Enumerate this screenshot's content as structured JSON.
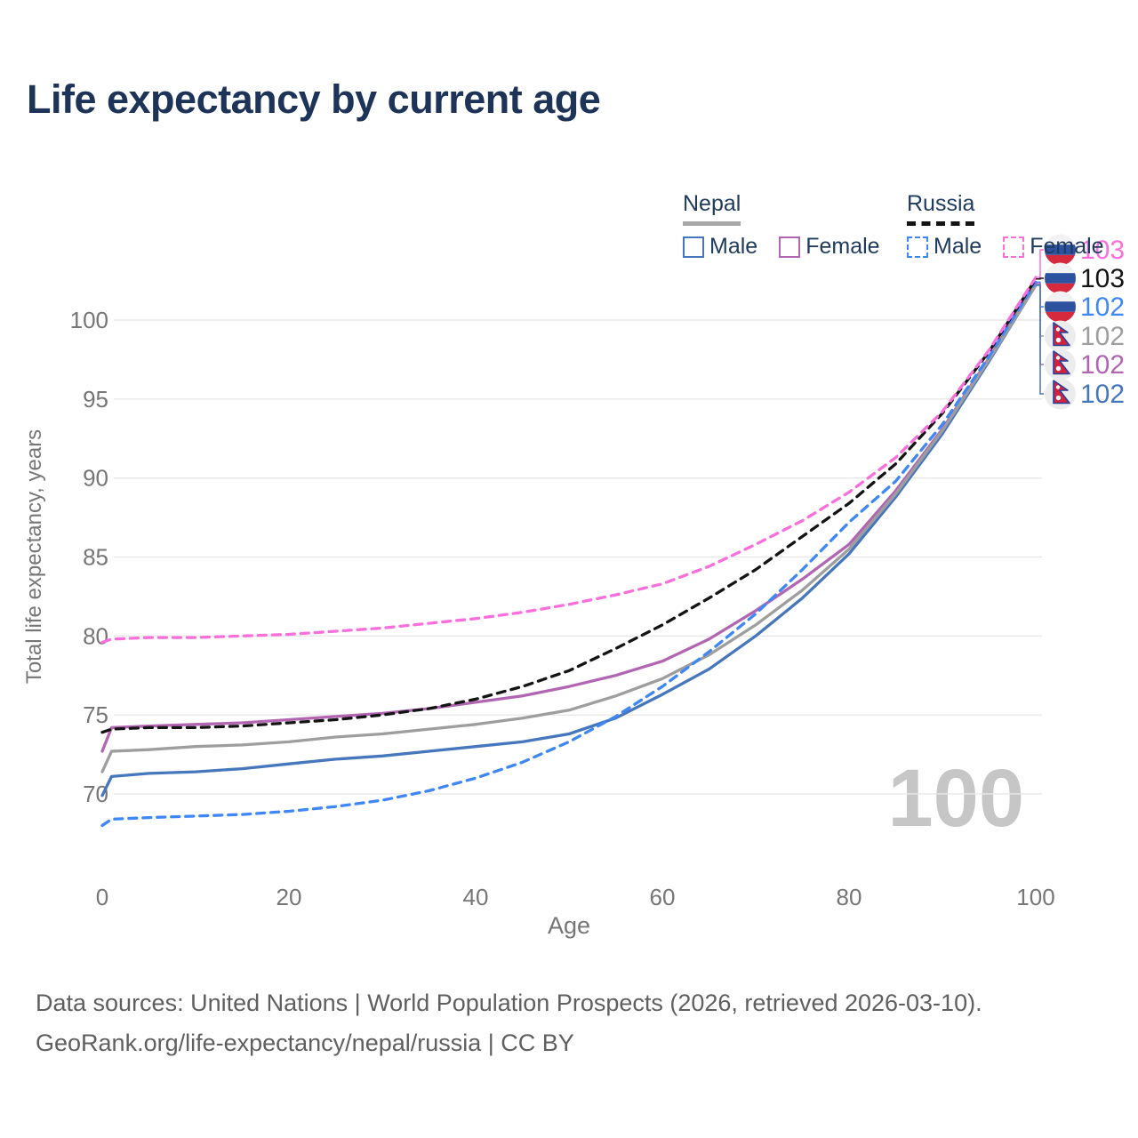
{
  "title": "Life expectancy by current age",
  "watermark": "100",
  "legend": {
    "groups": [
      {
        "name": "Nepal",
        "line_style": "solid",
        "underline_color": "#a8a8a8",
        "items": [
          {
            "label": "Male",
            "color": "#4677bd",
            "box_style": "solid"
          },
          {
            "label": "Female",
            "color": "#b266b2",
            "box_style": "solid"
          }
        ]
      },
      {
        "name": "Russia",
        "line_style": "dashed",
        "underline_color": "#141414",
        "items": [
          {
            "label": "Male",
            "color": "#3f87f5",
            "box_style": "dashed"
          },
          {
            "label": "Female",
            "color": "#fb6fdc",
            "box_style": "dashed"
          }
        ]
      }
    ]
  },
  "footer": {
    "line1": "Data sources: United Nations | World Population Prospects (2026, retrieved 2026-03-10).",
    "line2": "GeoRank.org/life-expectancy/nepal/russia | CC BY"
  },
  "colors": {
    "title": "#1d3458",
    "legend_text": "#1e3a5c",
    "axis_text": "#767676",
    "grid": "#e8e8e8",
    "footer_text": "#5f5f5f",
    "watermark": "#c6c6c6",
    "background": "#ffffff"
  },
  "chart_data": {
    "type": "line",
    "title": "Life expectancy by current age",
    "xlabel": "Age",
    "ylabel": "Total life expectancy, years",
    "x_ticks": [
      0,
      20,
      40,
      60,
      80,
      100
    ],
    "y_ticks": [
      70,
      75,
      80,
      85,
      90,
      95,
      100
    ],
    "xlim": [
      0,
      100
    ],
    "ylim": [
      67,
      104
    ],
    "grid": "horizontal",
    "legend_position": "top-right",
    "ages": [
      0,
      1,
      5,
      10,
      15,
      20,
      25,
      30,
      35,
      40,
      45,
      50,
      55,
      60,
      65,
      70,
      75,
      80,
      85,
      90,
      95,
      100
    ],
    "series": [
      {
        "name": "Russia Female",
        "country": "Russia",
        "sex": "Female",
        "color": "#fb6fdc",
        "dashed": true,
        "flag": "russia",
        "end_label": "103",
        "values": [
          79.6,
          79.8,
          79.9,
          79.9,
          80.0,
          80.1,
          80.3,
          80.5,
          80.8,
          81.1,
          81.5,
          82.0,
          82.6,
          83.3,
          84.4,
          85.8,
          87.3,
          89.1,
          91.3,
          94.2,
          98.1,
          102.7
        ]
      },
      {
        "name": "Russia Total",
        "country": "Russia",
        "sex": "Both",
        "color": "#141414",
        "dashed": true,
        "flag": "russia",
        "end_label": "103",
        "values": [
          73.9,
          74.1,
          74.2,
          74.2,
          74.3,
          74.5,
          74.7,
          75.0,
          75.4,
          76.0,
          76.8,
          77.8,
          79.2,
          80.7,
          82.4,
          84.2,
          86.3,
          88.4,
          90.9,
          94.1,
          98.0,
          102.6
        ]
      },
      {
        "name": "Russia Male",
        "country": "Russia",
        "sex": "Male",
        "color": "#3f87f5",
        "dashed": true,
        "flag": "russia",
        "end_label": "102",
        "values": [
          68.0,
          68.4,
          68.5,
          68.6,
          68.7,
          68.9,
          69.2,
          69.6,
          70.2,
          71.0,
          72.0,
          73.3,
          74.9,
          76.8,
          79.0,
          81.4,
          84.2,
          87.2,
          89.8,
          93.4,
          97.7,
          102.4
        ]
      },
      {
        "name": "Nepal Total",
        "country": "Nepal",
        "sex": "Both",
        "color": "#9e9e9e",
        "dashed": false,
        "flag": "nepal",
        "end_label": "102",
        "values": [
          71.4,
          72.7,
          72.8,
          73.0,
          73.1,
          73.3,
          73.6,
          73.8,
          74.1,
          74.4,
          74.8,
          75.3,
          76.2,
          77.3,
          78.8,
          80.7,
          82.9,
          85.5,
          89.0,
          93.0,
          97.5,
          102.2
        ]
      },
      {
        "name": "Nepal Female",
        "country": "Nepal",
        "sex": "Female",
        "color": "#b266b2",
        "dashed": false,
        "flag": "nepal",
        "end_label": "102",
        "values": [
          72.7,
          74.2,
          74.3,
          74.4,
          74.5,
          74.7,
          74.9,
          75.1,
          75.4,
          75.8,
          76.2,
          76.8,
          77.5,
          78.4,
          79.8,
          81.6,
          83.6,
          85.8,
          89.2,
          93.1,
          97.6,
          102.3
        ]
      },
      {
        "name": "Nepal Male",
        "country": "Nepal",
        "sex": "Male",
        "color": "#4677bd",
        "dashed": false,
        "flag": "nepal",
        "end_label": "102",
        "values": [
          69.9,
          71.1,
          71.3,
          71.4,
          71.6,
          71.9,
          72.2,
          72.4,
          72.7,
          73.0,
          73.3,
          73.8,
          74.8,
          76.3,
          77.9,
          80.0,
          82.4,
          85.2,
          88.8,
          92.8,
          97.4,
          102.2
        ]
      }
    ]
  }
}
